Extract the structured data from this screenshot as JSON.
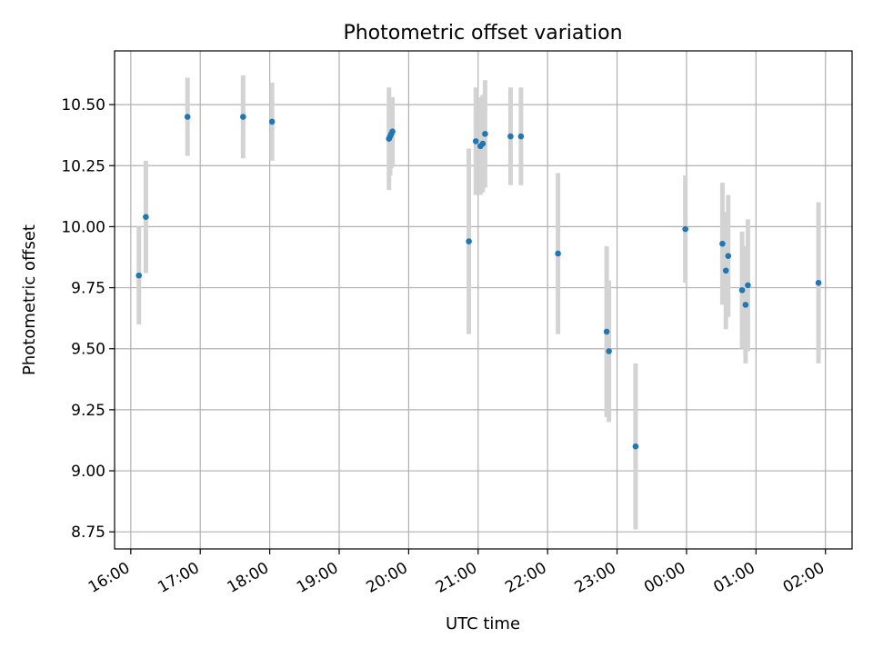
{
  "chart_data": {
    "type": "scatter",
    "title": "Photometric offset variation",
    "xlabel": "UTC time",
    "ylabel": "Photometric offset",
    "x_ticks": [
      "16:00",
      "17:00",
      "18:00",
      "19:00",
      "20:00",
      "21:00",
      "22:00",
      "23:00",
      "00:00",
      "01:00",
      "02:00"
    ],
    "y_ticks": [
      "8.75",
      "9.00",
      "9.25",
      "9.50",
      "9.75",
      "10.00",
      "10.25",
      "10.50"
    ],
    "xlim": [
      "15:46",
      "02:23"
    ],
    "ylim": [
      8.68,
      10.72
    ],
    "grid": true,
    "point_color": "#1f77b4",
    "errorbar_color": "#d3d3d3",
    "points": [
      {
        "x": "16:07",
        "y": 9.8,
        "err": 0.2
      },
      {
        "x": "16:13",
        "y": 10.04,
        "err": 0.23
      },
      {
        "x": "16:49",
        "y": 10.45,
        "err": 0.16
      },
      {
        "x": "17:37",
        "y": 10.45,
        "err": 0.17
      },
      {
        "x": "18:02",
        "y": 10.43,
        "err": 0.16
      },
      {
        "x": "19:43",
        "y": 10.36,
        "err": 0.21
      },
      {
        "x": "19:44",
        "y": 10.37,
        "err": 0.16
      },
      {
        "x": "19:45",
        "y": 10.38,
        "err": 0.14
      },
      {
        "x": "19:46",
        "y": 10.39,
        "err": 0.14
      },
      {
        "x": "20:52",
        "y": 9.94,
        "err": 0.38
      },
      {
        "x": "20:58",
        "y": 10.35,
        "err": 0.22
      },
      {
        "x": "21:02",
        "y": 10.33,
        "err": 0.2
      },
      {
        "x": "21:04",
        "y": 10.34,
        "err": 0.2
      },
      {
        "x": "21:06",
        "y": 10.38,
        "err": 0.22
      },
      {
        "x": "21:28",
        "y": 10.37,
        "err": 0.2
      },
      {
        "x": "21:37",
        "y": 10.37,
        "err": 0.2
      },
      {
        "x": "22:09",
        "y": 9.89,
        "err": 0.33
      },
      {
        "x": "22:51",
        "y": 9.57,
        "err": 0.35
      },
      {
        "x": "22:53",
        "y": 9.49,
        "err": 0.29
      },
      {
        "x": "23:16",
        "y": 9.1,
        "err": 0.34
      },
      {
        "x": "23:59",
        "y": 9.99,
        "err": 0.22
      },
      {
        "x": "00:31",
        "y": 9.93,
        "err": 0.25
      },
      {
        "x": "00:34",
        "y": 9.82,
        "err": 0.24
      },
      {
        "x": "00:36",
        "y": 9.88,
        "err": 0.25
      },
      {
        "x": "00:48",
        "y": 9.74,
        "err": 0.24
      },
      {
        "x": "00:51",
        "y": 9.68,
        "err": 0.24
      },
      {
        "x": "00:53",
        "y": 9.76,
        "err": 0.27
      },
      {
        "x": "01:54",
        "y": 9.77,
        "err": 0.33
      }
    ]
  }
}
